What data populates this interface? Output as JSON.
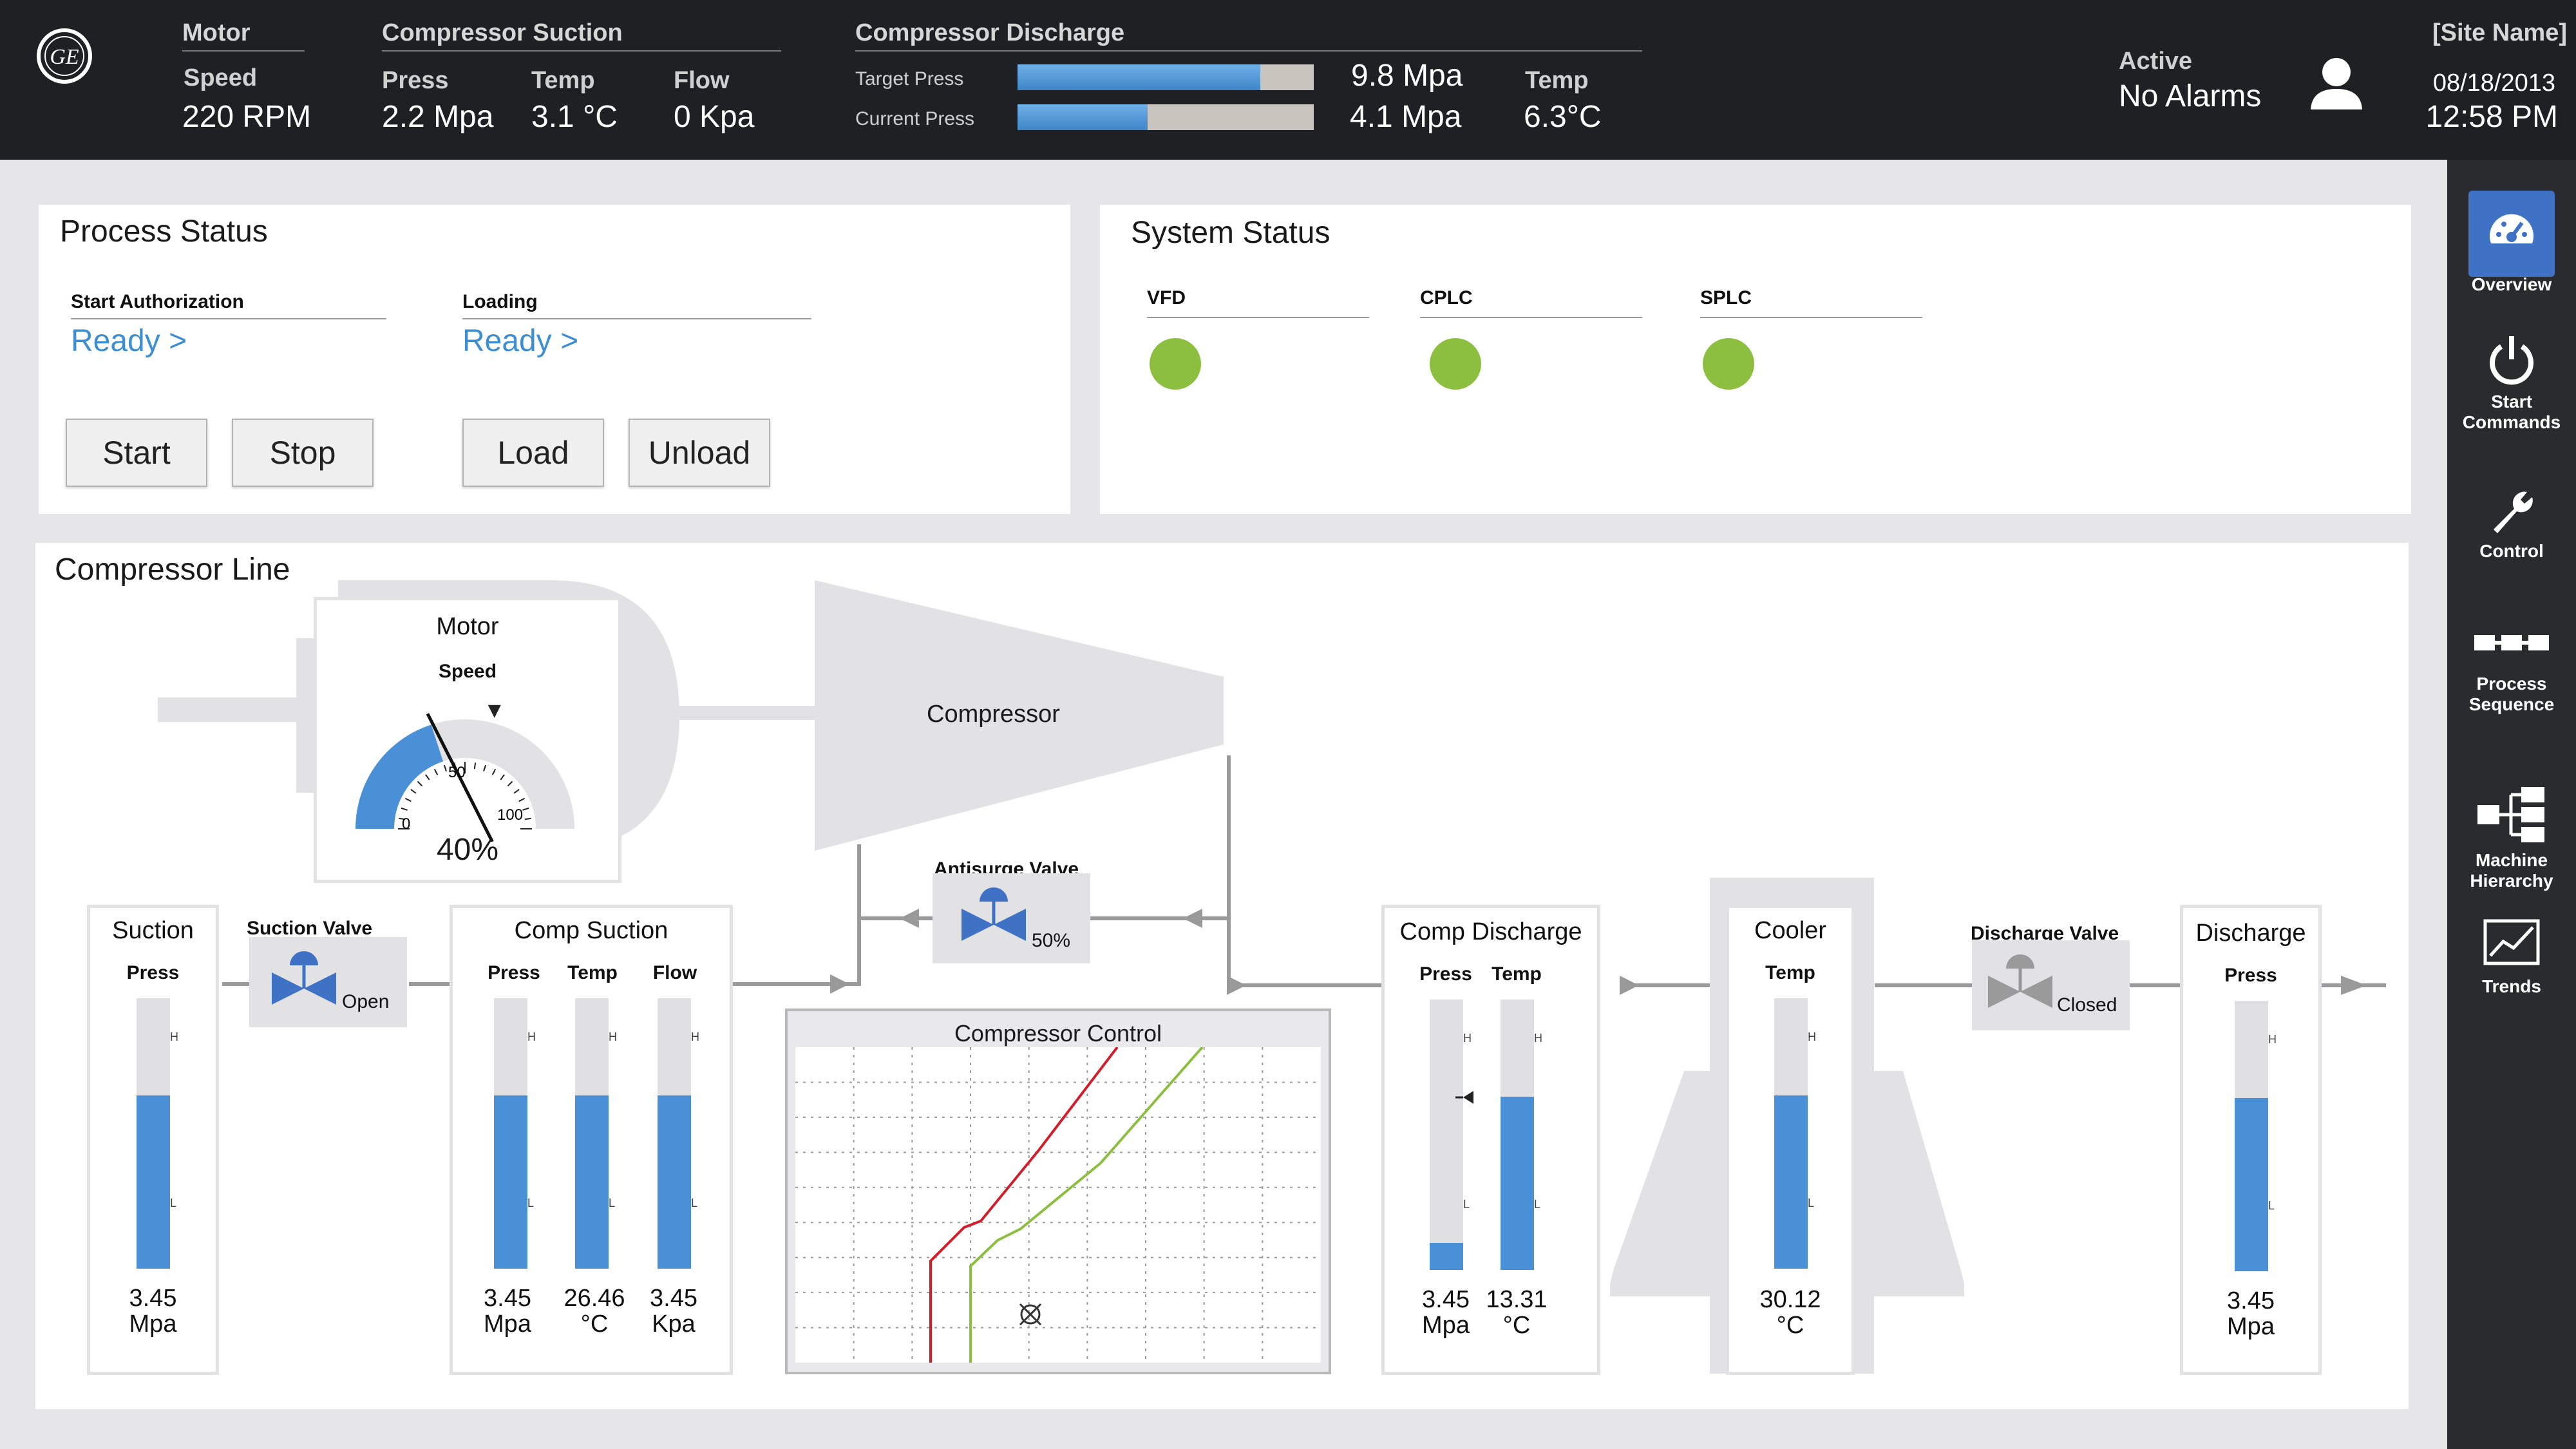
{
  "header": {
    "motor": {
      "title": "Motor",
      "speed_label": "Speed",
      "speed_value": "220 RPM"
    },
    "suction": {
      "title": "Compressor Suction",
      "press_label": "Press",
      "press_value": "2.2 Mpa",
      "temp_label": "Temp",
      "temp_value": "3.1 °C",
      "flow_label": "Flow",
      "flow_value": "0 Kpa"
    },
    "discharge": {
      "title": "Compressor Discharge",
      "target_label": "Target Press",
      "target_value": "9.8 Mpa",
      "target_fill_pct": 82,
      "current_label": "Current Press",
      "current_value": "4.1 Mpa",
      "current_fill_pct": 44,
      "temp_label": "Temp",
      "temp_value": "6.3°C"
    },
    "alarms": {
      "active_label": "Active",
      "status": "No Alarms"
    },
    "site": {
      "name": "[Site Name]",
      "date": "08/18/2013",
      "time": "12:58 PM"
    }
  },
  "nav": [
    {
      "label_1": "Overview",
      "label_2": "",
      "active": true,
      "icon": "gauge-icon"
    },
    {
      "label_1": "Start",
      "label_2": "Commands",
      "active": false,
      "icon": "power-icon"
    },
    {
      "label_1": "Control",
      "label_2": "",
      "active": false,
      "icon": "wrench-icon"
    },
    {
      "label_1": "Process",
      "label_2": "Sequence",
      "active": false,
      "icon": "sequence-icon"
    },
    {
      "label_1": "Machine",
      "label_2": "Hierarchy",
      "active": false,
      "icon": "hierarchy-icon"
    },
    {
      "label_1": "Trends",
      "label_2": "",
      "active": false,
      "icon": "trends-icon"
    }
  ],
  "process_status": {
    "title": "Process Status",
    "start_auth_label": "Start Authorization",
    "start_auth_value": "Ready >",
    "loading_label": "Loading",
    "loading_value": "Ready >",
    "buttons": {
      "start": "Start",
      "stop": "Stop",
      "load": "Load",
      "unload": "Unload"
    }
  },
  "system_status": {
    "title": "System Status",
    "items": [
      {
        "label": "VFD"
      },
      {
        "label": "CPLC"
      },
      {
        "label": "SPLC"
      }
    ]
  },
  "compressor_line": {
    "title": "Compressor Line",
    "motor": {
      "title": "Motor",
      "speed_label": "Speed",
      "value": "40%",
      "value_pct": 40,
      "tick_0": "0",
      "tick_50": "50",
      "tick_100": "100"
    },
    "compressor_label": "Compressor",
    "antisurge": {
      "label": "Antisurge Valve",
      "state": "50%"
    },
    "suction_valve": {
      "label": "Suction Valve",
      "state": "Open"
    },
    "discharge_valve": {
      "label": "Discharge Valve",
      "state": "Closed"
    },
    "control_chart_title": "Compressor Control",
    "suction": {
      "title": "Suction",
      "press_label": "Press",
      "press_value": "3.45",
      "press_unit": "Mpa",
      "press_level_pct": 64
    },
    "comp_suction": {
      "title": "Comp Suction",
      "press_label": "Press",
      "press_value": "3.45",
      "press_unit": "Mpa",
      "press_level_pct": 64,
      "temp_label": "Temp",
      "temp_value": "26.46",
      "temp_unit": "°C",
      "temp_level_pct": 64,
      "flow_label": "Flow",
      "flow_value": "3.45",
      "flow_unit": "Kpa",
      "flow_level_pct": 64
    },
    "comp_discharge": {
      "title": "Comp Discharge",
      "press_label": "Press",
      "press_value": "3.45",
      "press_unit": "Mpa",
      "press_level_pct": 10,
      "temp_label": "Temp",
      "temp_value": "13.31",
      "temp_unit": "°C",
      "temp_level_pct": 64
    },
    "cooler": {
      "title": "Cooler",
      "temp_label": "Temp",
      "temp_value": "30.12",
      "temp_unit": "°C",
      "temp_level_pct": 64
    },
    "discharge": {
      "title": "Discharge",
      "press_label": "Press",
      "press_value": "3.45",
      "press_unit": "Mpa",
      "press_level_pct": 64
    },
    "tick_h": "H",
    "tick_l": "L"
  },
  "colors": {
    "accent": "#4a90d6",
    "status_ok": "#8cbf3f",
    "link": "#3d8fd1",
    "surge_line": "#d01e2a",
    "control_line": "#8cbf3f"
  }
}
